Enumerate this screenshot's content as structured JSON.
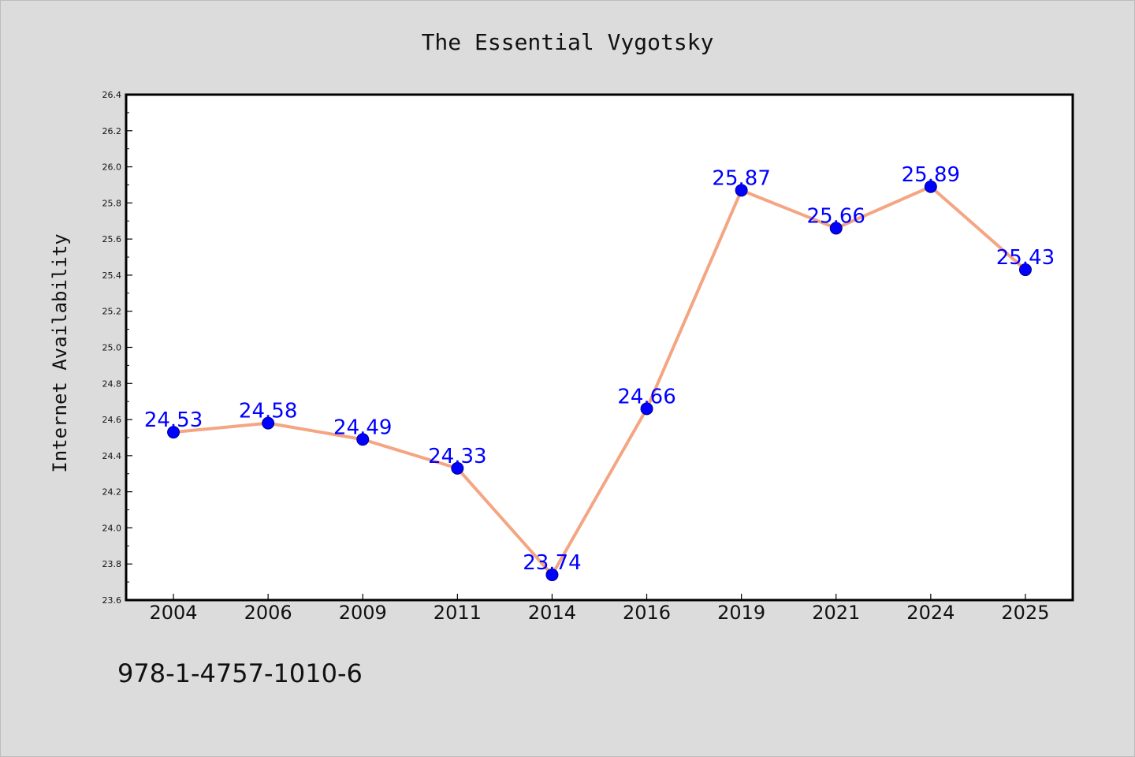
{
  "chart_data": {
    "type": "line",
    "title": "The Essential Vygotsky",
    "xlabel": "",
    "ylabel": "Internet Availability",
    "categories": [
      "2004",
      "2006",
      "2009",
      "2011",
      "2014",
      "2016",
      "2019",
      "2021",
      "2024",
      "2025"
    ],
    "series": [
      {
        "values": [
          24.53,
          24.58,
          24.49,
          24.33,
          23.74,
          24.66,
          25.87,
          25.66,
          25.89,
          25.43
        ]
      }
    ],
    "data_labels": [
      "24.53",
      "24.58",
      "24.49",
      "24.33",
      "23.74",
      "24.66",
      "25.87",
      "25.66",
      "25.89",
      "25.43"
    ],
    "ylim": [
      23.6,
      26.4
    ],
    "y_ticks": [
      "23.6",
      "23.8",
      "24.0",
      "24.2",
      "24.4",
      "24.6",
      "24.8",
      "25.0",
      "25.2",
      "25.4",
      "25.6",
      "25.8",
      "26.0",
      "26.2",
      "26.4"
    ],
    "grid": false,
    "legend": "none",
    "colors": {
      "line": "#f4a582",
      "marker": "#0000ff",
      "label": "#0000ff",
      "background": "#dcdcdc",
      "plot_background": "#ffffff"
    }
  },
  "footer": {
    "isbn": "978-1-4757-1010-6"
  }
}
